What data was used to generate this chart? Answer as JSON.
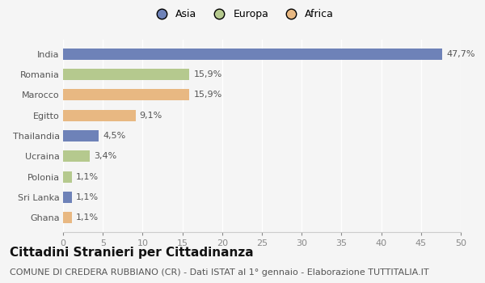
{
  "countries": [
    "India",
    "Romania",
    "Marocco",
    "Egitto",
    "Thailandia",
    "Ucraina",
    "Polonia",
    "Sri Lanka",
    "Ghana"
  ],
  "values": [
    47.7,
    15.9,
    15.9,
    9.1,
    4.5,
    3.4,
    1.1,
    1.1,
    1.1
  ],
  "labels": [
    "47,7%",
    "15,9%",
    "15,9%",
    "9,1%",
    "4,5%",
    "3,4%",
    "1,1%",
    "1,1%",
    "1,1%"
  ],
  "colors": [
    "#6e82b8",
    "#b5c98e",
    "#e8b882",
    "#e8b882",
    "#6e82b8",
    "#b5c98e",
    "#b5c98e",
    "#6e82b8",
    "#e8b882"
  ],
  "continents": [
    "Asia",
    "Europa",
    "Africa"
  ],
  "legend_colors": [
    "#6e82b8",
    "#b5c98e",
    "#e8b882"
  ],
  "xlim": [
    0,
    50
  ],
  "xticks": [
    0,
    5,
    10,
    15,
    20,
    25,
    30,
    35,
    40,
    45,
    50
  ],
  "title": "Cittadini Stranieri per Cittadinanza",
  "subtitle": "COMUNE DI CREDERA RUBBIANO (CR) - Dati ISTAT al 1° gennaio - Elaborazione TUTTITALIA.IT",
  "background_color": "#f5f5f5",
  "bar_height": 0.55,
  "title_fontsize": 11,
  "subtitle_fontsize": 8,
  "label_fontsize": 8,
  "tick_fontsize": 8,
  "ytick_fontsize": 8,
  "legend_fontsize": 9
}
